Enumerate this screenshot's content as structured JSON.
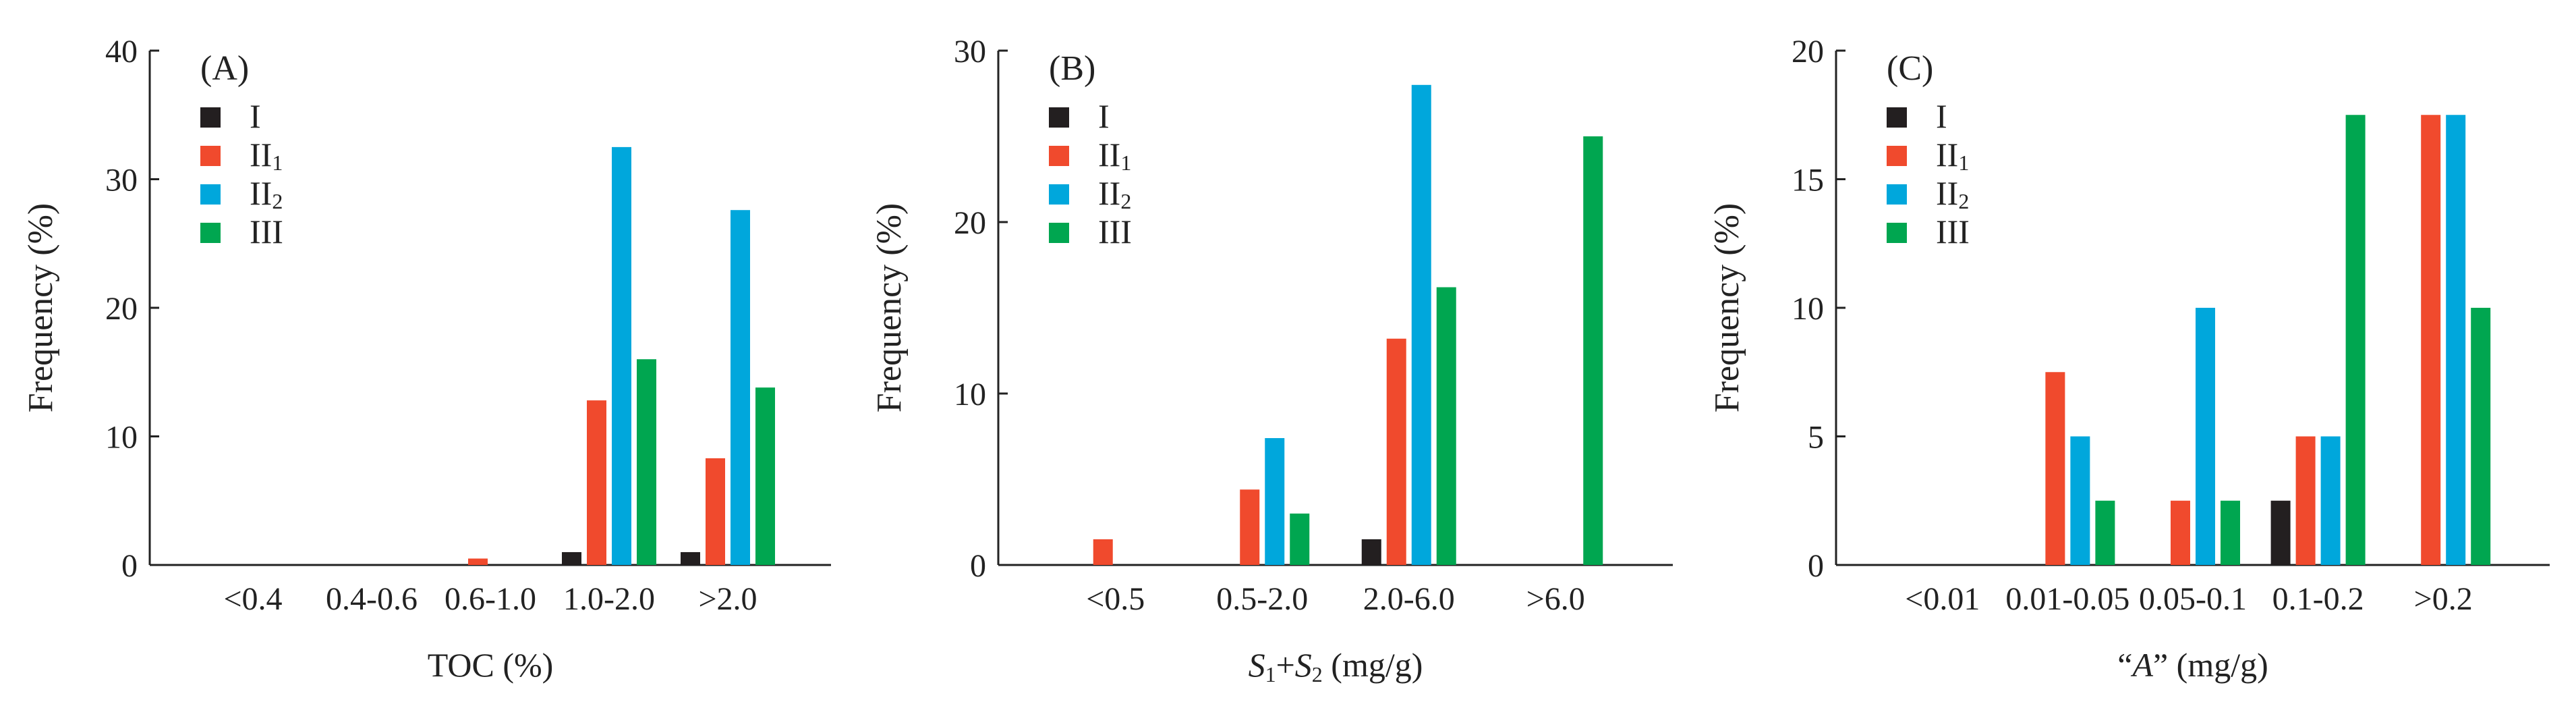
{
  "series_names": [
    "I",
    "II1",
    "II2",
    "III"
  ],
  "series_labels": [
    {
      "base": "I",
      "sub": ""
    },
    {
      "base": "II",
      "sub": "1"
    },
    {
      "base": "II",
      "sub": "2"
    },
    {
      "base": "III",
      "sub": ""
    }
  ],
  "colors": {
    "I": "#231f20",
    "II1": "#f04a2d",
    "II2": "#00a7dc",
    "III": "#00a650",
    "axis": "#222222",
    "background": "#ffffff"
  },
  "chart_data": [
    {
      "type": "bar",
      "panel_label": "(A)",
      "xlabel": "TOC (%)",
      "ylabel": "Frequency (%)",
      "ylim": [
        0,
        40
      ],
      "yticks": [
        0,
        10,
        20,
        30,
        40
      ],
      "categories": [
        "<0.4",
        "0.4-0.6",
        "0.6-1.0",
        "1.0-2.0",
        ">2.0"
      ],
      "series": [
        {
          "name": "I",
          "values": [
            0,
            0,
            0,
            1.0,
            1.0
          ]
        },
        {
          "name": "II1",
          "values": [
            0,
            0,
            0.5,
            12.8,
            8.3
          ]
        },
        {
          "name": "II2",
          "values": [
            0,
            0,
            0,
            32.5,
            27.6
          ]
        },
        {
          "name": "III",
          "values": [
            0,
            0,
            0,
            16.0,
            13.8
          ]
        }
      ],
      "legend": "top-left"
    },
    {
      "type": "bar",
      "panel_label": "(B)",
      "xlabel": "S1+S2 (mg/g)",
      "xlabel_parts": [
        {
          "text": "S",
          "italic": true,
          "sub": false
        },
        {
          "text": "1",
          "italic": false,
          "sub": true
        },
        {
          "text": "+",
          "italic": false,
          "sub": false
        },
        {
          "text": "S",
          "italic": true,
          "sub": false
        },
        {
          "text": "2",
          "italic": false,
          "sub": true
        },
        {
          "text": " (mg/g)",
          "italic": false,
          "sub": false
        }
      ],
      "ylabel": "Frequency (%)",
      "ylim": [
        0,
        30
      ],
      "yticks": [
        0,
        10,
        20,
        30
      ],
      "categories": [
        "<0.5",
        "0.5-2.0",
        "2.0-6.0",
        ">6.0"
      ],
      "series": [
        {
          "name": "I",
          "values": [
            0,
            0,
            1.5,
            0
          ]
        },
        {
          "name": "II1",
          "values": [
            1.5,
            4.4,
            13.2,
            0
          ]
        },
        {
          "name": "II2",
          "values": [
            0,
            7.4,
            28.0,
            0
          ]
        },
        {
          "name": "III",
          "values": [
            0,
            3.0,
            16.2,
            25.0
          ]
        }
      ],
      "legend": "top-left"
    },
    {
      "type": "bar",
      "panel_label": "(C)",
      "xlabel": "“A” (mg/g)",
      "xlabel_parts": [
        {
          "text": "“",
          "italic": false,
          "sub": false
        },
        {
          "text": "A",
          "italic": true,
          "sub": false
        },
        {
          "text": "” (mg/g)",
          "italic": false,
          "sub": false
        }
      ],
      "ylabel": "Frequency (%)",
      "ylim": [
        0,
        20
      ],
      "yticks": [
        0,
        5,
        10,
        15,
        20
      ],
      "categories": [
        "<0.01",
        "0.01-0.05",
        "0.05-0.1",
        "0.1-0.2",
        ">0.2"
      ],
      "series": [
        {
          "name": "I",
          "values": [
            0,
            0,
            0,
            2.5,
            0
          ]
        },
        {
          "name": "II1",
          "values": [
            0,
            7.5,
            2.5,
            5.0,
            17.5
          ]
        },
        {
          "name": "II2",
          "values": [
            0,
            5.0,
            10.0,
            5.0,
            17.5
          ]
        },
        {
          "name": "III",
          "values": [
            0,
            2.5,
            2.5,
            17.5,
            10.0
          ]
        }
      ],
      "legend": "top-left"
    }
  ]
}
